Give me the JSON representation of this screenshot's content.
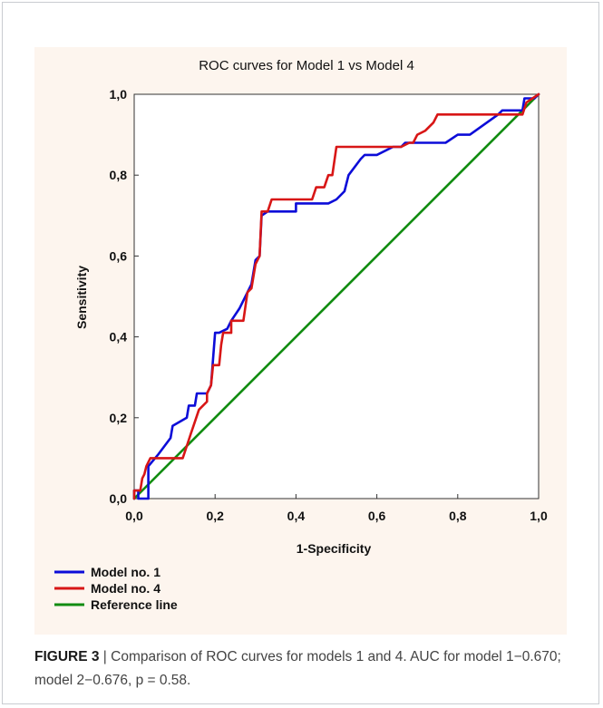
{
  "colors": {
    "model1": "#0c0cd8",
    "model4": "#d81616",
    "reference": "#118c11",
    "panel_bg": "#fdf5ee",
    "plot_bg": "#ffffff"
  },
  "chart_data": {
    "type": "line",
    "title": "ROC curves for Model 1 vs Model 4",
    "xlabel": "1-Specificity",
    "ylabel": "Sensitivity",
    "xlim": [
      0,
      1
    ],
    "ylim": [
      0,
      1
    ],
    "x_tick_labels": [
      "0,0",
      "0,2",
      "0,4",
      "0,6",
      "0,8",
      "1,0"
    ],
    "y_tick_labels": [
      "0,0",
      "0,2",
      "0,4",
      "0,6",
      "0,8",
      "1,0"
    ],
    "grid": false,
    "legend_position": "bottom-left",
    "series": [
      {
        "name": "Model no. 1",
        "color": "#0c0cd8",
        "points": [
          [
            0.0,
            0.0
          ],
          [
            0.0,
            0.02
          ],
          [
            0.01,
            0.02
          ],
          [
            0.01,
            0.0
          ],
          [
            0.035,
            0.0
          ],
          [
            0.035,
            0.08
          ],
          [
            0.06,
            0.11
          ],
          [
            0.09,
            0.15
          ],
          [
            0.095,
            0.18
          ],
          [
            0.13,
            0.2
          ],
          [
            0.135,
            0.23
          ],
          [
            0.15,
            0.23
          ],
          [
            0.155,
            0.26
          ],
          [
            0.18,
            0.26
          ],
          [
            0.19,
            0.28
          ],
          [
            0.2,
            0.41
          ],
          [
            0.21,
            0.41
          ],
          [
            0.23,
            0.42
          ],
          [
            0.24,
            0.44
          ],
          [
            0.26,
            0.47
          ],
          [
            0.29,
            0.53
          ],
          [
            0.3,
            0.59
          ],
          [
            0.31,
            0.6
          ],
          [
            0.315,
            0.7
          ],
          [
            0.33,
            0.71
          ],
          [
            0.4,
            0.71
          ],
          [
            0.4,
            0.73
          ],
          [
            0.48,
            0.73
          ],
          [
            0.5,
            0.74
          ],
          [
            0.52,
            0.76
          ],
          [
            0.53,
            0.8
          ],
          [
            0.56,
            0.84
          ],
          [
            0.57,
            0.85
          ],
          [
            0.6,
            0.85
          ],
          [
            0.64,
            0.87
          ],
          [
            0.66,
            0.87
          ],
          [
            0.67,
            0.88
          ],
          [
            0.77,
            0.88
          ],
          [
            0.8,
            0.9
          ],
          [
            0.83,
            0.9
          ],
          [
            0.9,
            0.95
          ],
          [
            0.91,
            0.96
          ],
          [
            0.96,
            0.96
          ],
          [
            0.965,
            0.99
          ],
          [
            0.99,
            0.99
          ],
          [
            1.0,
            1.0
          ]
        ]
      },
      {
        "name": "Model no. 4",
        "color": "#d81616",
        "points": [
          [
            0.0,
            0.0
          ],
          [
            0.0,
            0.02
          ],
          [
            0.015,
            0.02
          ],
          [
            0.02,
            0.05
          ],
          [
            0.025,
            0.06
          ],
          [
            0.03,
            0.08
          ],
          [
            0.04,
            0.1
          ],
          [
            0.12,
            0.1
          ],
          [
            0.13,
            0.13
          ],
          [
            0.14,
            0.16
          ],
          [
            0.15,
            0.19
          ],
          [
            0.16,
            0.22
          ],
          [
            0.18,
            0.24
          ],
          [
            0.18,
            0.26
          ],
          [
            0.19,
            0.28
          ],
          [
            0.195,
            0.33
          ],
          [
            0.21,
            0.33
          ],
          [
            0.215,
            0.38
          ],
          [
            0.22,
            0.41
          ],
          [
            0.24,
            0.41
          ],
          [
            0.24,
            0.44
          ],
          [
            0.27,
            0.44
          ],
          [
            0.28,
            0.51
          ],
          [
            0.29,
            0.52
          ],
          [
            0.3,
            0.58
          ],
          [
            0.31,
            0.6
          ],
          [
            0.315,
            0.71
          ],
          [
            0.33,
            0.71
          ],
          [
            0.34,
            0.74
          ],
          [
            0.44,
            0.74
          ],
          [
            0.45,
            0.77
          ],
          [
            0.47,
            0.77
          ],
          [
            0.48,
            0.8
          ],
          [
            0.49,
            0.8
          ],
          [
            0.5,
            0.87
          ],
          [
            0.66,
            0.87
          ],
          [
            0.68,
            0.88
          ],
          [
            0.69,
            0.88
          ],
          [
            0.7,
            0.9
          ],
          [
            0.72,
            0.91
          ],
          [
            0.74,
            0.93
          ],
          [
            0.75,
            0.95
          ],
          [
            0.96,
            0.95
          ],
          [
            0.97,
            0.98
          ],
          [
            0.985,
            0.99
          ],
          [
            1.0,
            1.0
          ]
        ]
      },
      {
        "name": "Reference line",
        "color": "#118c11",
        "points": [
          [
            0.0,
            0.0
          ],
          [
            1.0,
            1.0
          ]
        ]
      }
    ]
  },
  "caption": {
    "label": "FIGURE 3",
    "text": " | Comparison of ROC curves for models 1 and 4. AUC for model 1−0.670; model 2−0.676, p = 0.58."
  }
}
